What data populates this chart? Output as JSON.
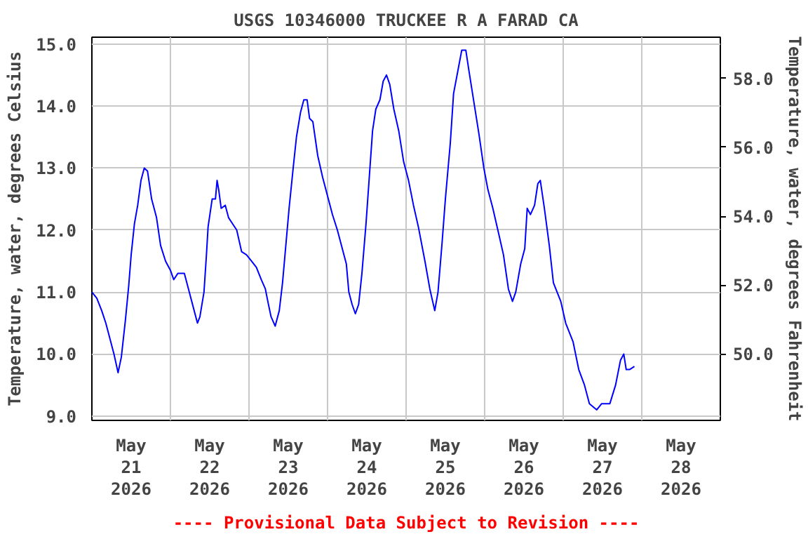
{
  "chart_data": {
    "type": "line",
    "title": "USGS 10346000 TRUCKEE R A FARAD CA",
    "ylabel": "Temperature, water, degrees Celsius",
    "y2label": "Temperature, water, degrees Fahrenheit",
    "annotations": [
      "---- Provisional Data Subject to Revision ----"
    ],
    "xlim": [
      "2026-05-21T00:00",
      "2026-05-29T00:00"
    ],
    "xticks": [
      {
        "value": "2026-05-21T00:00",
        "label": null
      },
      {
        "value": "2026-05-21T12:00",
        "label": "May\n21\n2026"
      },
      {
        "value": "2026-05-22T00:00",
        "label": null
      },
      {
        "value": "2026-05-22T12:00",
        "label": "May\n22\n2026"
      },
      {
        "value": "2026-05-23T00:00",
        "label": null
      },
      {
        "value": "2026-05-23T12:00",
        "label": "May\n23\n2026"
      },
      {
        "value": "2026-05-24T00:00",
        "label": null
      },
      {
        "value": "2026-05-24T12:00",
        "label": "May\n24\n2026"
      },
      {
        "value": "2026-05-25T00:00",
        "label": null
      },
      {
        "value": "2026-05-25T12:00",
        "label": "May\n25\n2026"
      },
      {
        "value": "2026-05-26T00:00",
        "label": null
      },
      {
        "value": "2026-05-26T12:00",
        "label": "May\n26\n2026"
      },
      {
        "value": "2026-05-27T00:00",
        "label": null
      },
      {
        "value": "2026-05-27T12:00",
        "label": "May\n27\n2026"
      },
      {
        "value": "2026-05-28T00:00",
        "label": null
      },
      {
        "value": "2026-05-28T12:00",
        "label": "May\n28\n2026"
      },
      {
        "value": "2026-05-29T00:00",
        "label": null
      }
    ],
    "ylim": [
      8.93,
      15.11
    ],
    "yticks": [
      {
        "value": 9,
        "label": "9.0"
      },
      {
        "value": 10,
        "label": "10.0"
      },
      {
        "value": 11,
        "label": "11.0"
      },
      {
        "value": 12,
        "label": "12.0"
      },
      {
        "value": 13,
        "label": "13.0"
      },
      {
        "value": 14,
        "label": "14.0"
      },
      {
        "value": 15,
        "label": "15.0"
      }
    ],
    "y2lim": [
      48.07,
      59.2
    ],
    "y2ticks": [
      {
        "value": 50,
        "label": "50.0"
      },
      {
        "value": 52,
        "label": "52.0"
      },
      {
        "value": 54,
        "label": "54.0"
      },
      {
        "value": 56,
        "label": "56.0"
      },
      {
        "value": 58,
        "label": "58.0"
      }
    ],
    "grid": true,
    "marker": "none",
    "line_style": "solid",
    "x": [
      "2026-05-21T00:00",
      "2026-05-21T01:30",
      "2026-05-21T03:00",
      "2026-05-21T04:15",
      "2026-05-21T05:45",
      "2026-05-21T06:45",
      "2026-05-21T08:00",
      "2026-05-21T09:00",
      "2026-05-21T10:15",
      "2026-05-21T11:15",
      "2026-05-21T12:00",
      "2026-05-21T13:00",
      "2026-05-21T14:00",
      "2026-05-21T15:00",
      "2026-05-21T16:00",
      "2026-05-21T17:00",
      "2026-05-21T18:15",
      "2026-05-21T19:45",
      "2026-05-21T21:00",
      "2026-05-21T22:30",
      "2026-05-22T00:00",
      "2026-05-22T01:00",
      "2026-05-22T02:15",
      "2026-05-22T04:15",
      "2026-05-22T05:45",
      "2026-05-22T07:15",
      "2026-05-22T08:15",
      "2026-05-22T09:00",
      "2026-05-22T10:15",
      "2026-05-22T11:00",
      "2026-05-22T11:30",
      "2026-05-22T12:45",
      "2026-05-22T13:45",
      "2026-05-22T14:15",
      "2026-05-22T14:45",
      "2026-05-22T15:30",
      "2026-05-22T16:45",
      "2026-05-22T17:45",
      "2026-05-22T19:00",
      "2026-05-22T20:15",
      "2026-05-22T21:45",
      "2026-05-22T23:15",
      "2026-05-23T00:45",
      "2026-05-23T02:15",
      "2026-05-23T03:45",
      "2026-05-23T05:00",
      "2026-05-23T05:45",
      "2026-05-23T06:45",
      "2026-05-23T08:00",
      "2026-05-23T09:15",
      "2026-05-23T10:15",
      "2026-05-23T11:15",
      "2026-05-23T12:15",
      "2026-05-23T13:30",
      "2026-05-23T14:30",
      "2026-05-23T15:45",
      "2026-05-23T16:45",
      "2026-05-23T17:45",
      "2026-05-23T18:30",
      "2026-05-23T19:30",
      "2026-05-23T21:00",
      "2026-05-23T22:30",
      "2026-05-24T00:00",
      "2026-05-24T01:30",
      "2026-05-24T03:00",
      "2026-05-24T04:15",
      "2026-05-24T05:45",
      "2026-05-24T06:30",
      "2026-05-24T07:30",
      "2026-05-24T08:30",
      "2026-05-24T09:30",
      "2026-05-24T10:30",
      "2026-05-24T11:45",
      "2026-05-24T12:45",
      "2026-05-24T13:45",
      "2026-05-24T14:45",
      "2026-05-24T16:00",
      "2026-05-24T17:00",
      "2026-05-24T18:00",
      "2026-05-24T19:00",
      "2026-05-24T20:15",
      "2026-05-24T21:45",
      "2026-05-24T23:15",
      "2026-05-25T00:45",
      "2026-05-25T02:15",
      "2026-05-25T03:45",
      "2026-05-25T05:45",
      "2026-05-25T07:15",
      "2026-05-25T08:45",
      "2026-05-25T09:45",
      "2026-05-25T11:00",
      "2026-05-25T12:00",
      "2026-05-25T13:30",
      "2026-05-25T14:30",
      "2026-05-25T15:45",
      "2026-05-25T17:00",
      "2026-05-25T18:15",
      "2026-05-25T19:15",
      "2026-05-25T20:45",
      "2026-05-25T22:15",
      "2026-05-25T23:45",
      "2026-05-26T01:00",
      "2026-05-26T02:30",
      "2026-05-26T04:15",
      "2026-05-26T05:45",
      "2026-05-26T07:15",
      "2026-05-26T08:30",
      "2026-05-26T09:30",
      "2026-05-26T11:00",
      "2026-05-26T12:15",
      "2026-05-26T13:00",
      "2026-05-26T14:00",
      "2026-05-26T15:15",
      "2026-05-26T16:15",
      "2026-05-26T17:00",
      "2026-05-26T18:15",
      "2026-05-26T19:45",
      "2026-05-26T21:00",
      "2026-05-26T23:15",
      "2026-05-27T00:45",
      "2026-05-27T03:00",
      "2026-05-27T04:45",
      "2026-05-27T06:30",
      "2026-05-27T08:00",
      "2026-05-27T10:15",
      "2026-05-27T11:45",
      "2026-05-27T14:15",
      "2026-05-27T16:00",
      "2026-05-27T17:30",
      "2026-05-27T18:30",
      "2026-05-27T19:15",
      "2026-05-27T20:15",
      "2026-05-27T21:45"
    ],
    "series": [
      {
        "color": "#0000ff",
        "values": [
          11.0,
          10.9,
          10.7,
          10.5,
          10.2,
          10.0,
          9.7,
          9.95,
          10.55,
          11.1,
          11.6,
          12.1,
          12.4,
          12.8,
          13.0,
          12.95,
          12.5,
          12.2,
          11.75,
          11.5,
          11.35,
          11.2,
          11.3,
          11.3,
          11.0,
          10.7,
          10.5,
          10.6,
          11.0,
          11.6,
          12.05,
          12.5,
          12.5,
          12.8,
          12.65,
          12.35,
          12.4,
          12.2,
          12.1,
          12.0,
          11.65,
          11.6,
          11.5,
          11.4,
          11.2,
          11.05,
          10.85,
          10.6,
          10.45,
          10.7,
          11.15,
          11.75,
          12.35,
          13.0,
          13.5,
          13.9,
          14.1,
          14.1,
          13.8,
          13.75,
          13.2,
          12.85,
          12.55,
          12.25,
          12.0,
          11.75,
          11.45,
          11.0,
          10.8,
          10.65,
          10.8,
          11.3,
          12.1,
          12.85,
          13.6,
          13.95,
          14.1,
          14.4,
          14.5,
          14.35,
          13.95,
          13.6,
          13.1,
          12.8,
          12.4,
          12.05,
          11.5,
          11.05,
          10.7,
          11.0,
          11.8,
          12.5,
          13.4,
          14.2,
          14.55,
          14.9,
          14.9,
          14.55,
          14.05,
          13.55,
          13.0,
          12.65,
          12.35,
          11.95,
          11.6,
          11.05,
          10.85,
          11.0,
          11.45,
          11.7,
          12.35,
          12.25,
          12.4,
          12.75,
          12.8,
          12.35,
          11.75,
          11.15,
          10.85,
          10.5,
          10.2,
          9.75,
          9.5,
          9.2,
          9.1,
          9.2,
          9.2,
          9.5,
          9.9,
          10.0,
          9.75,
          9.75,
          9.8
        ]
      }
    ]
  }
}
